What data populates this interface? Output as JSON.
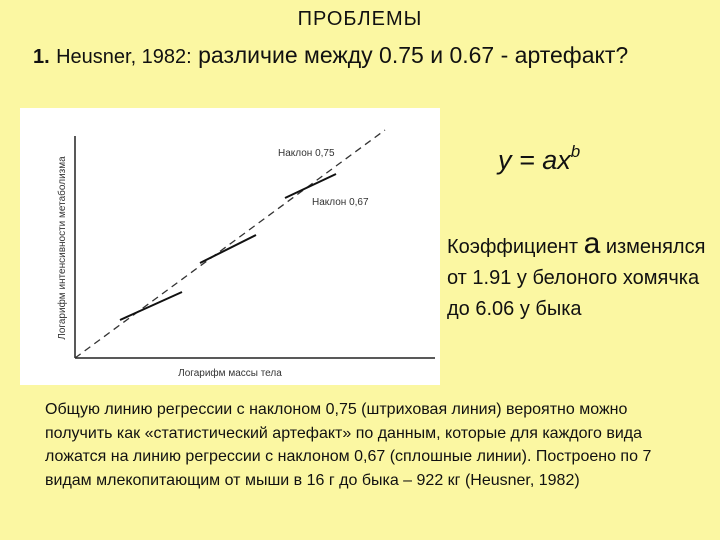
{
  "slide": {
    "title": "ПРОБЛЕМЫ",
    "point": {
      "number": "1.",
      "author": "Heusner, 1982:",
      "text": "различие между 0.75 и 0.67 - артефакт?"
    },
    "figure": {
      "y_label": "Логарифм интенсивности метаболизма",
      "x_label": "Логарифм массы тела",
      "annotations": [
        "Наклон 0,75",
        "Наклон 0,67"
      ]
    },
    "formula": {
      "base": "y = ax",
      "exponent": "b"
    },
    "note": {
      "lead": "Коэффициент",
      "symbol": "a",
      "text": "изменялся  от 1.91 у белоного хомячка до 6.06 у быка"
    },
    "caption": "Общую линию регрессии с наклоном 0,75 (штриховая линия) вероятно можно получить как «статистический артефакт» по данным, которые для каждого вида ложатся  на линию регрессии с наклоном 0,67 (сплошные линии). Построено по 7 видам млекопитающим от мыши в 16 г до быка – 922 кг (Heusner, 1982)"
  }
}
